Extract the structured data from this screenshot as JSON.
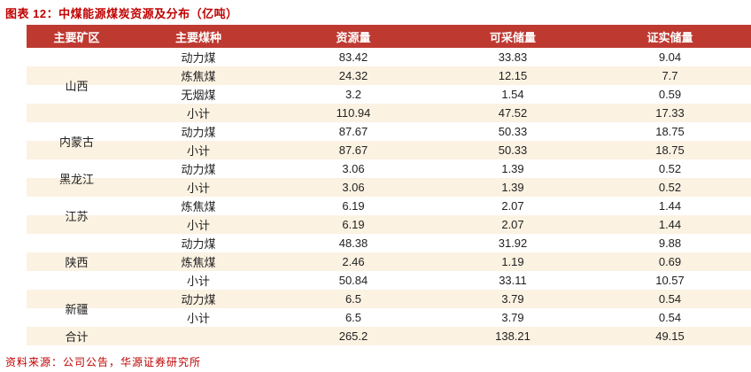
{
  "title": "图表 12：中煤能源煤炭资源及分布（亿吨）",
  "source": "资料来源：公司公告，华源证券研究所",
  "colors": {
    "header_bg": "#BE3A31",
    "header_text": "#FFFFFF",
    "stripe_bg": "#FCF2E2",
    "accent_red": "#C00000",
    "body_text": "#1F1F1F"
  },
  "table": {
    "headers": [
      "主要矿区",
      "主要煤种",
      "资源量",
      "可采储量",
      "证实储量"
    ],
    "groups": [
      {
        "region": "山西",
        "rows": [
          [
            "动力煤",
            "83.42",
            "33.83",
            "9.04"
          ],
          [
            "炼焦煤",
            "24.32",
            "12.15",
            "7.7"
          ],
          [
            "无烟煤",
            "3.2",
            "1.54",
            "0.59"
          ],
          [
            "小计",
            "110.94",
            "47.52",
            "17.33"
          ]
        ]
      },
      {
        "region": "内蒙古",
        "rows": [
          [
            "动力煤",
            "87.67",
            "50.33",
            "18.75"
          ],
          [
            "小计",
            "87.67",
            "50.33",
            "18.75"
          ]
        ]
      },
      {
        "region": "黑龙江",
        "rows": [
          [
            "动力煤",
            "3.06",
            "1.39",
            "0.52"
          ],
          [
            "小计",
            "3.06",
            "1.39",
            "0.52"
          ]
        ]
      },
      {
        "region": "江苏",
        "rows": [
          [
            "炼焦煤",
            "6.19",
            "2.07",
            "1.44"
          ],
          [
            "小计",
            "6.19",
            "2.07",
            "1.44"
          ]
        ]
      },
      {
        "region": "陕西",
        "rows": [
          [
            "动力煤",
            "48.38",
            "31.92",
            "9.88"
          ],
          [
            "炼焦煤",
            "2.46",
            "1.19",
            "0.69"
          ],
          [
            "小计",
            "50.84",
            "33.11",
            "10.57"
          ]
        ]
      },
      {
        "region": "新疆",
        "rows": [
          [
            "动力煤",
            "6.5",
            "3.79",
            "0.54"
          ],
          [
            "小计",
            "6.5",
            "3.79",
            "0.54"
          ]
        ]
      }
    ],
    "total": {
      "label": "合计",
      "values": [
        "265.2",
        "138.21",
        "49.15"
      ]
    }
  }
}
